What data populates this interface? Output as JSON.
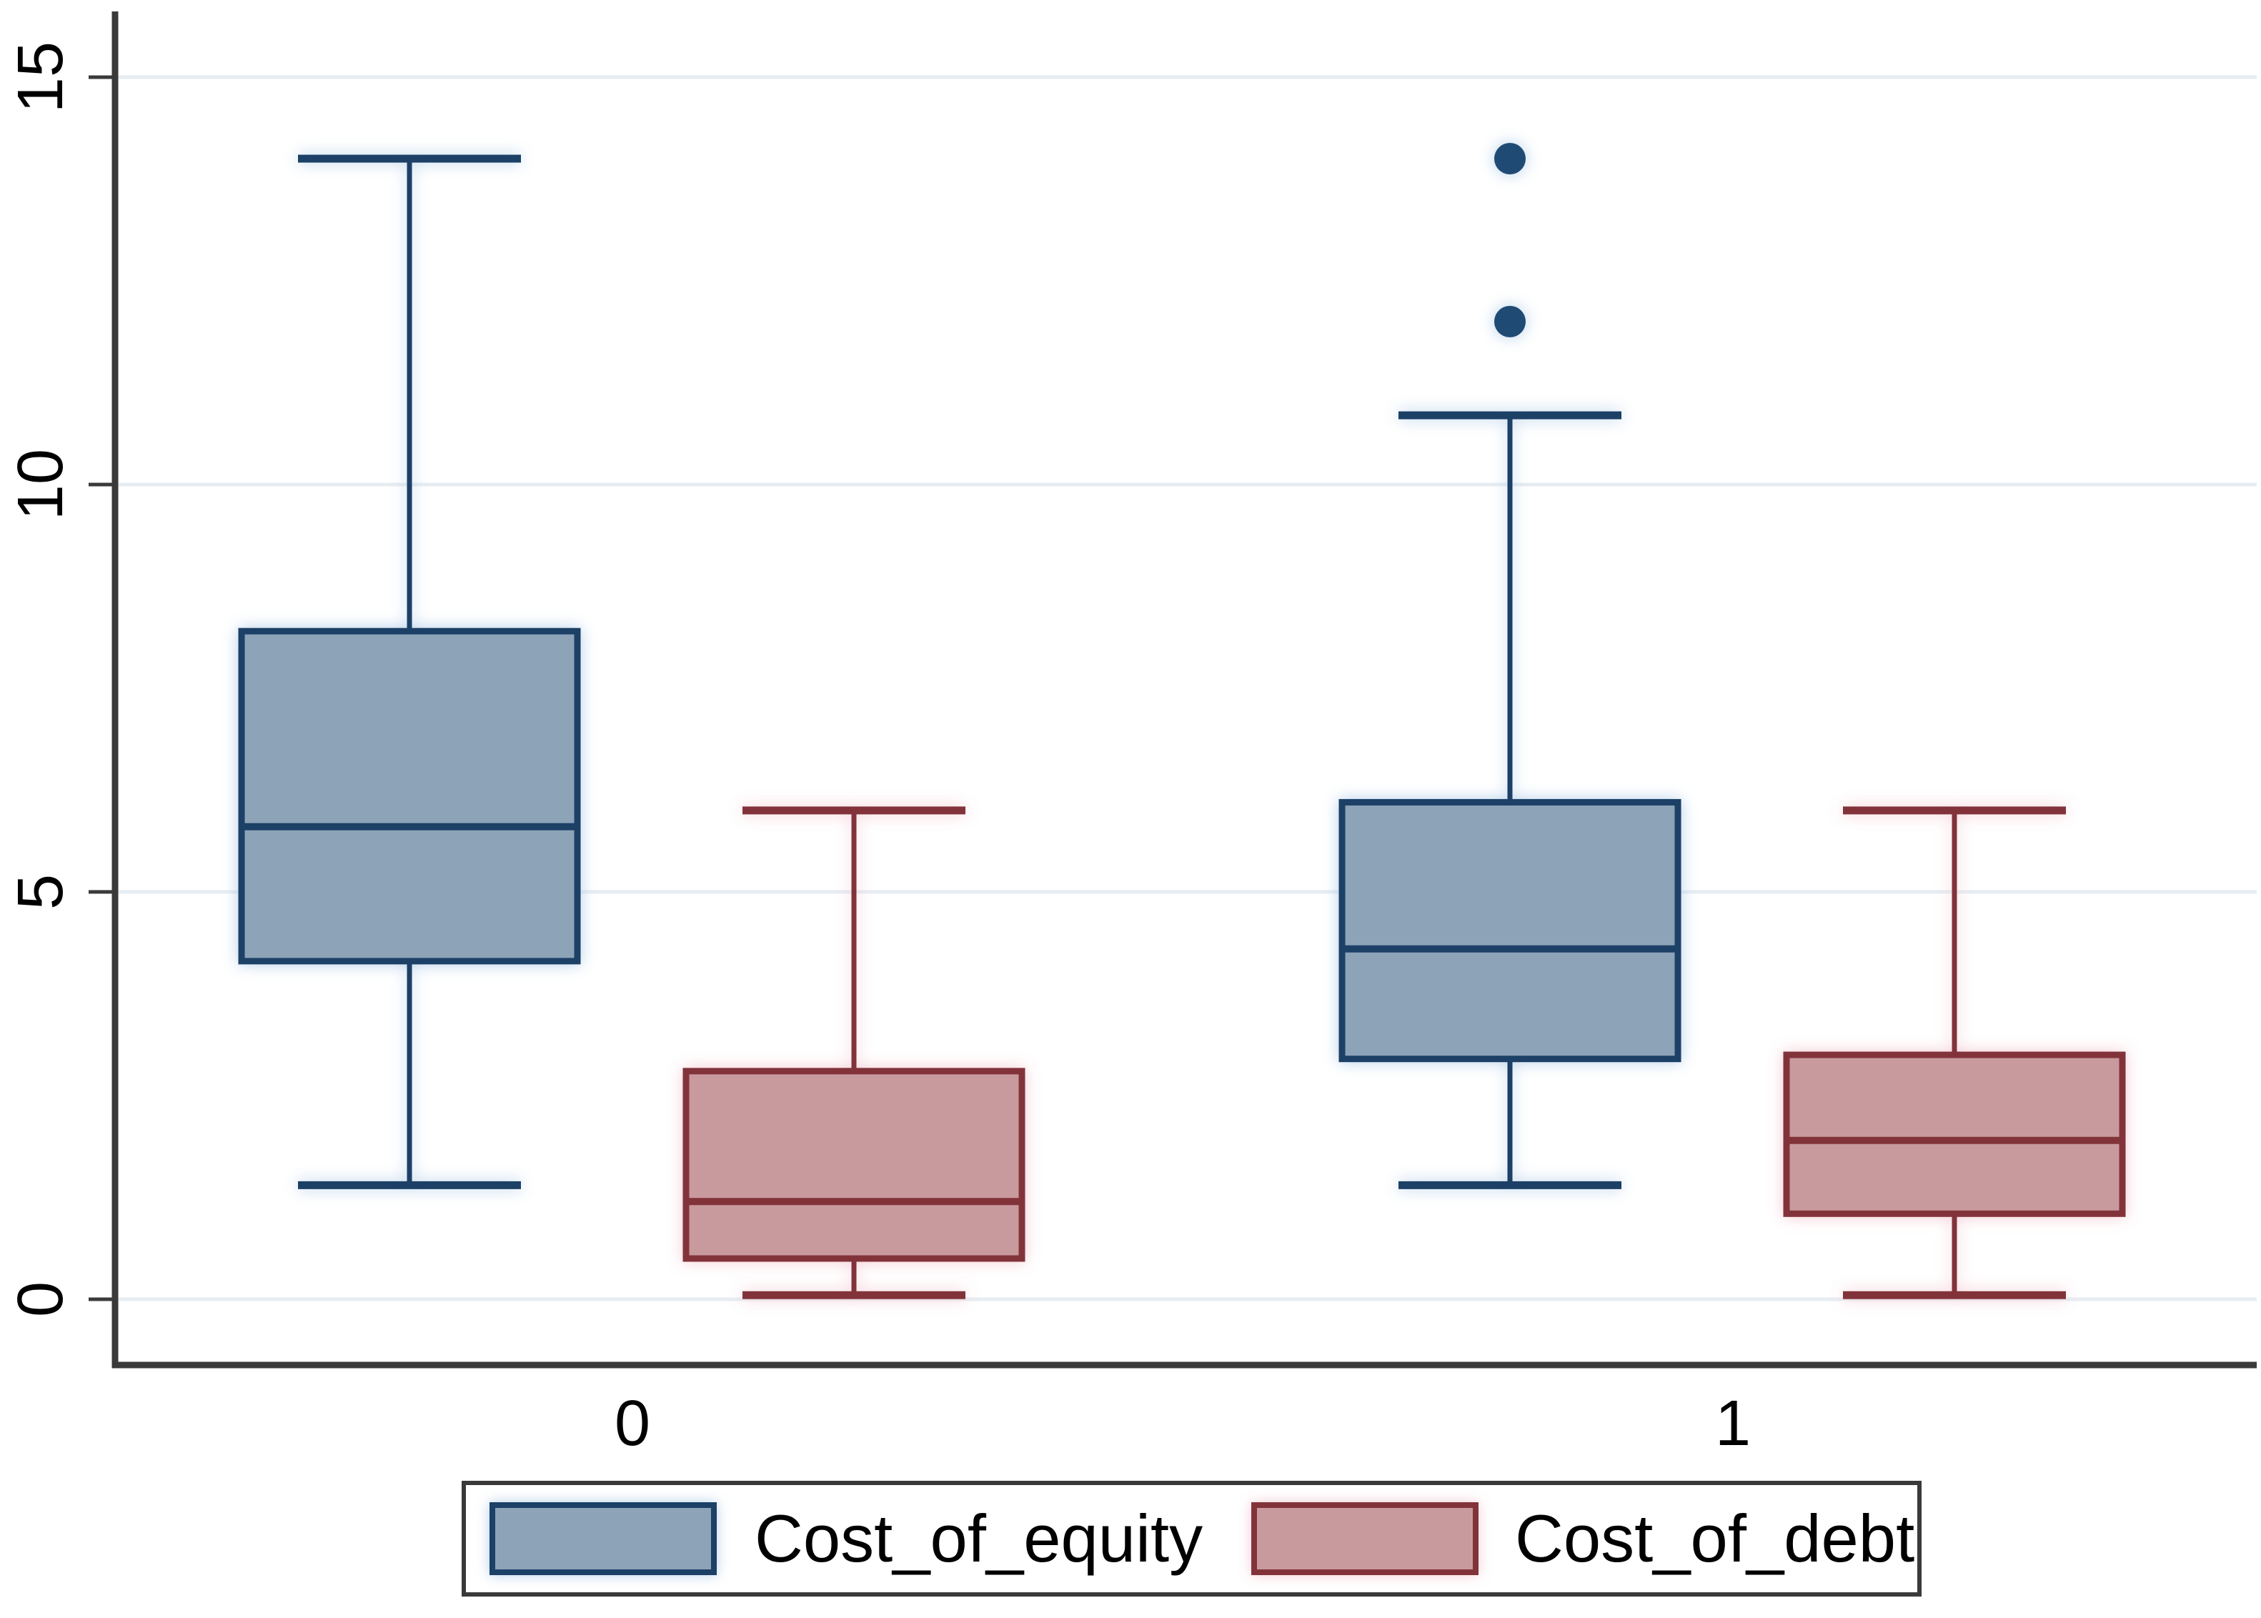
{
  "chart_data": {
    "type": "boxplot",
    "orientation": "vertical",
    "grid": "horizontal-only",
    "legend_position": "bottom",
    "x_axis": {
      "categories": [
        "0",
        "1"
      ]
    },
    "y_axis": {
      "tick_labels": [
        "0",
        "5",
        "10",
        "15"
      ],
      "tick_values": [
        0,
        5,
        10,
        15
      ],
      "shown_range": [
        0,
        15.7
      ],
      "label_rotation_deg": -90
    },
    "series": [
      {
        "name": "Cost_of_equity",
        "fill": "#8da3b8",
        "stroke": "#1c4066",
        "boxes": [
          {
            "category": "0",
            "whisker_low": 1.4,
            "q1": 4.15,
            "median": 5.8,
            "q3": 8.2,
            "whisker_high": 14.0,
            "outliers": []
          },
          {
            "category": "1",
            "whisker_low": 1.4,
            "q1": 2.95,
            "median": 4.3,
            "q3": 6.1,
            "whisker_high": 10.85,
            "outliers": [
              12.0,
              14.0
            ]
          }
        ]
      },
      {
        "name": "Cost_of_debt",
        "fill": "#c89a9d",
        "stroke": "#82333a",
        "boxes": [
          {
            "category": "0",
            "whisker_low": 0.05,
            "q1": 0.5,
            "median": 1.2,
            "q3": 2.8,
            "whisker_high": 6.0,
            "outliers": []
          },
          {
            "category": "1",
            "whisker_low": 0.05,
            "q1": 1.05,
            "median": 1.95,
            "q3": 3.0,
            "whisker_high": 6.0,
            "outliers": []
          }
        ]
      }
    ],
    "colors": {
      "axis": "#3a3a3a",
      "gridline": "#e7edf2",
      "outlier_dot": "#1f4a74",
      "tick_label": "#000000",
      "background": "#ffffff"
    }
  },
  "legend": {
    "items": [
      {
        "label": "Cost_of_equity"
      },
      {
        "label": "Cost_of_debt"
      }
    ]
  }
}
